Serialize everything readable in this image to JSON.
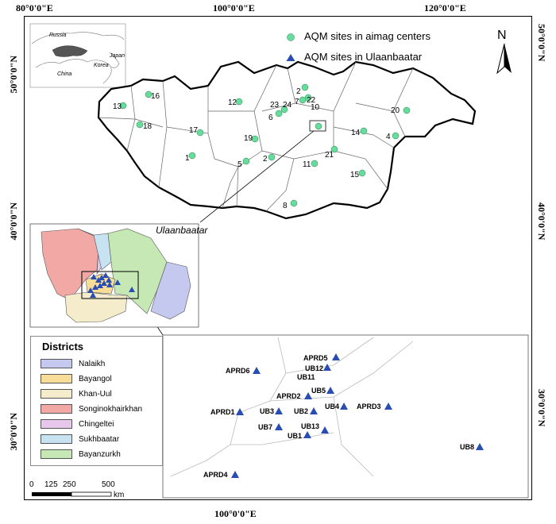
{
  "coords": {
    "top": [
      "80°0'0\"E",
      "100°0'0\"E",
      "120°0'0\"E"
    ],
    "bottom": [
      "100°0'0\"E"
    ],
    "left": [
      "50°0'0\"N",
      "40°0'0\"N",
      "30°0'0\"N"
    ],
    "right": [
      "50°0'0\"N",
      "40°0'0\"N",
      "30°0'0\"N"
    ]
  },
  "locator": {
    "russia": "Russia",
    "china": "China",
    "japan": "Japan",
    "korea": "Korea"
  },
  "key": {
    "aimag_label": "AQM sites in aimag centers",
    "ub_label": "AQM sites in Ulaanbaatar",
    "aimag_color": "#66dd9b",
    "ub_color": "#2a4db3"
  },
  "north": {
    "label": "N"
  },
  "aimag_sites": [
    "13",
    "16",
    "18",
    "17",
    "1",
    "12",
    "19",
    "5",
    "2",
    "23",
    "24",
    "6",
    "2",
    "22",
    "7",
    "10",
    "21",
    "11",
    "8",
    "14",
    "4",
    "20",
    "15"
  ],
  "inset": {
    "title": "Ulaanbaatar"
  },
  "ub_sites": [
    "APRD5",
    "UB12",
    "UB11",
    "APRD6",
    "APRD2",
    "UB5",
    "APRD1",
    "UB3",
    "UB2",
    "UB4",
    "APRD3",
    "UB7",
    "UB13",
    "UB1",
    "UB8",
    "APRD4"
  ],
  "districts": {
    "title": "Districts",
    "items": [
      {
        "name": "Nalaikh",
        "color": "#c6c9ef"
      },
      {
        "name": "Bayangol",
        "color": "#f7dd98"
      },
      {
        "name": "Khan-Uul",
        "color": "#f4eccb"
      },
      {
        "name": "Songinokhairkhan",
        "color": "#f2a9a6"
      },
      {
        "name": "Chingeltei",
        "color": "#e7c8ec"
      },
      {
        "name": "Sukhbaatar",
        "color": "#c7e3f2"
      },
      {
        "name": "Bayanzurkh",
        "color": "#c5e8b5"
      }
    ]
  },
  "scale": {
    "ticks": [
      "0",
      "125",
      "250",
      "500"
    ],
    "unit": "km"
  }
}
